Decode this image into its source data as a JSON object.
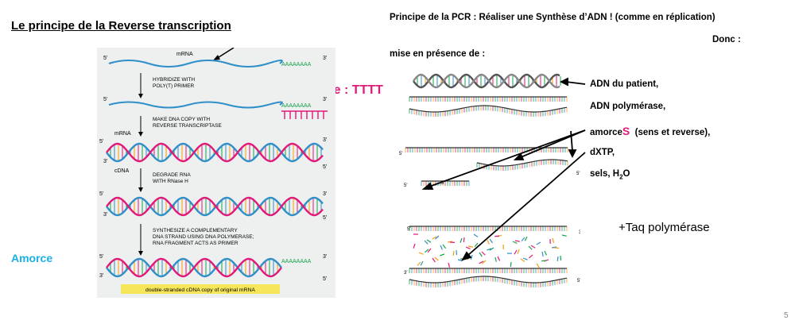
{
  "left": {
    "title": "Le principe de la Reverse transcription",
    "amorce_tttt": "Amorce : TTTT",
    "amorce_bottom": "Amorce"
  },
  "rt_figure": {
    "mrna_top": "mRNA",
    "five_prime": "5'",
    "three_prime": "3'",
    "poly_a": "AAAAAAAA",
    "step1_line1": "HYBRIDIZE WITH",
    "step1_line2": "POLY(T) PRIMER",
    "step2_line1": "MAKE DNA COPY WITH",
    "step2_line2": "REVERSE TRANSCRIPTASE",
    "mrna_side": "mRNA",
    "cdna_side": "cDNA",
    "step3_line1": "DEGRADE RNA",
    "step3_line2": "WITH RNase H",
    "step4_line1": "SYNTHESIZE A COMPLEMENTARY",
    "step4_line2": "DNA STRAND USING DNA POLYMERASE;",
    "step4_line3": "RNA FRAGMENT ACTS AS PRIMER",
    "caption": "double-stranded cDNA copy of original mRNA"
  },
  "right": {
    "heading": "Principe de la PCR : Réaliser une Synthèse d’ADN ! (comme en réplication)",
    "donc": "Donc :",
    "mise": "mise en présence de :",
    "items": {
      "adn_patient": "ADN du patient,",
      "adn_polymerase": "ADN polymérase,",
      "amorces_prefix": "amorce",
      "amorces_s": "S",
      "amorces_suffix": "  (sens et reverse),",
      "dxtp": "dXTP,",
      "sels_prefix": "sels, H",
      "sels_sub": "2",
      "sels_suffix": "O"
    },
    "taq": "+Taq polymérase",
    "pcr_five": "5'",
    "pcr_three": "3'"
  },
  "page_number": "5",
  "colors": {
    "pink": "#e0197a",
    "cyan": "#1ab0e6",
    "mrna_blue": "#2f8fc9",
    "caption_yellow": "#f5e65a"
  }
}
